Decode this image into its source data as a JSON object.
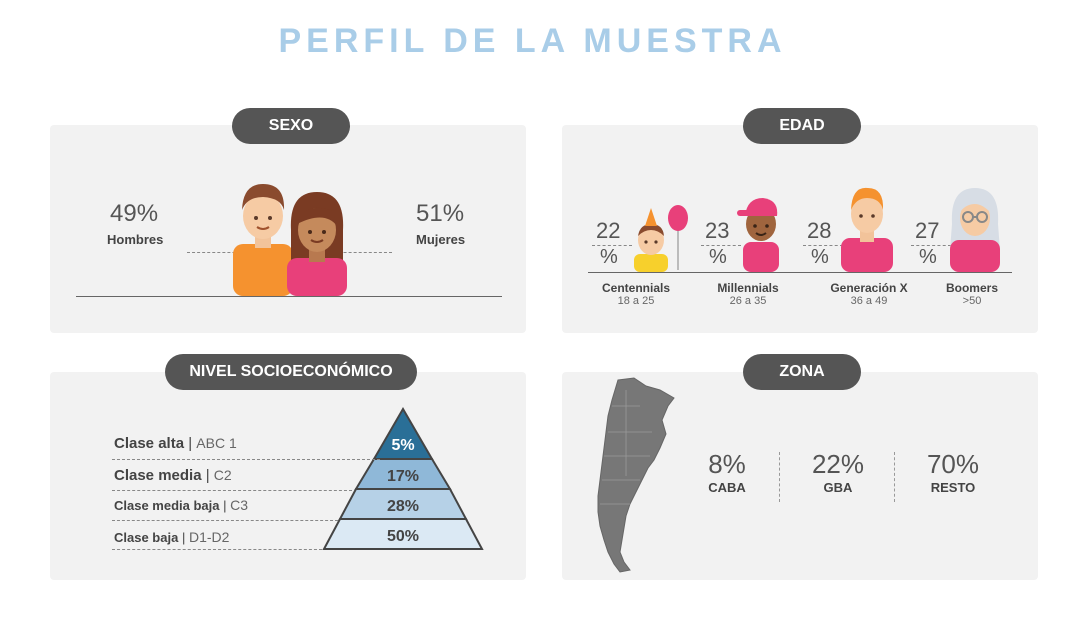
{
  "title": "PERFIL DE LA MUESTRA",
  "sexo": {
    "label": "SEXO",
    "hombres": {
      "pct": "49%",
      "label": "Hombres"
    },
    "mujeres": {
      "pct": "51%",
      "label": "Mujeres"
    }
  },
  "edad": {
    "label": "EDAD",
    "groups": [
      {
        "num": "22",
        "sym": "%",
        "name": "Centennials",
        "range": "18 a 25"
      },
      {
        "num": "23",
        "sym": "%",
        "name": "Millennials",
        "range": "26 a 35"
      },
      {
        "num": "28",
        "sym": "%",
        "name": "Generación X",
        "range": "36 a 49"
      },
      {
        "num": "27",
        "sym": "%",
        "name": "Boomers",
        "range": ">50"
      }
    ]
  },
  "nse": {
    "label": "NIVEL SOCIOECONÓMICO",
    "rows": [
      {
        "name": "Clase alta",
        "code": "ABC 1",
        "pct": "5%"
      },
      {
        "name": "Clase media",
        "code": "C2",
        "pct": "17%"
      },
      {
        "name": "Clase media baja",
        "code": "C3",
        "pct": "28%"
      },
      {
        "name": "Clase baja",
        "code": "D1-D2",
        "pct": "50%"
      }
    ],
    "pyramid_colors": [
      "#2a6f97",
      "#8fb8d8",
      "#b6d1e7",
      "#dbe9f4"
    ]
  },
  "zona": {
    "label": "ZONA",
    "items": [
      {
        "pct": "8%",
        "name": "CABA"
      },
      {
        "pct": "22%",
        "name": "GBA"
      },
      {
        "pct": "70%",
        "name": "RESTO"
      }
    ]
  }
}
